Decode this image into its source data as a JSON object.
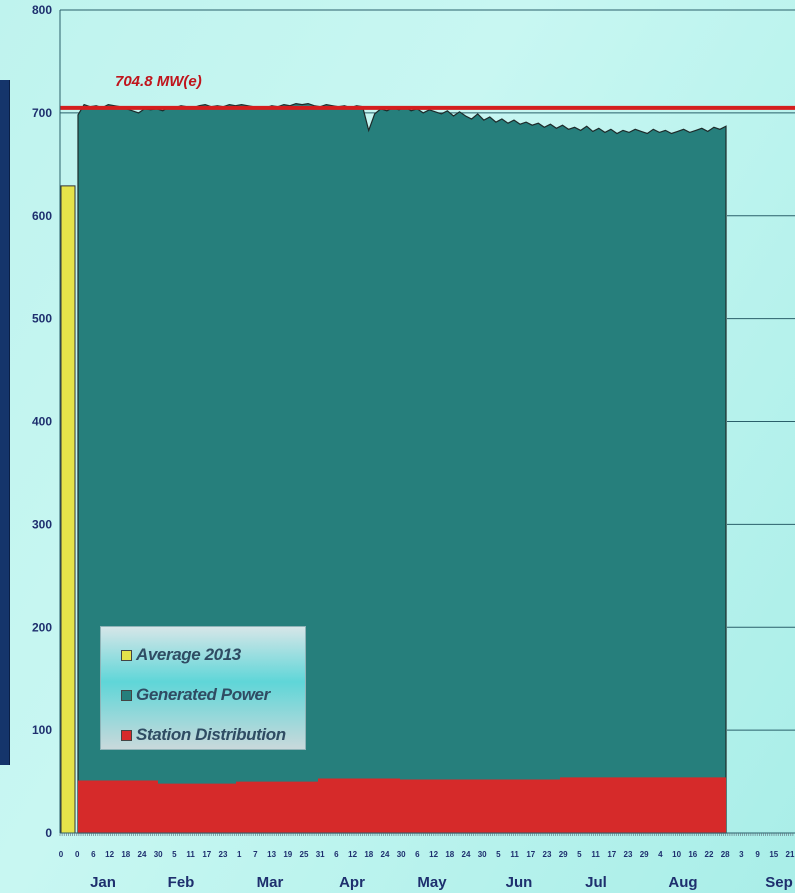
{
  "chart_data": {
    "type": "area",
    "y_axis": {
      "ylim": [
        0,
        800
      ],
      "ticks": [
        "0",
        "100",
        "200",
        "300",
        "400",
        "500",
        "600",
        "700",
        "800"
      ]
    },
    "reference_line": {
      "value": 704.8,
      "label": "704.8 MW(e)",
      "color": "#d41e1e"
    },
    "months": [
      "Jan",
      "Feb",
      "Mar",
      "Apr",
      "May",
      "Jun",
      "Jul",
      "Aug",
      "Sep"
    ],
    "x_tick_labels": [
      "0",
      "0",
      "6",
      "12",
      "18",
      "24",
      "30",
      "5",
      "11",
      "17",
      "23",
      "1",
      "7",
      "13",
      "19",
      "25",
      "31",
      "6",
      "12",
      "18",
      "24",
      "30",
      "6",
      "12",
      "18",
      "24",
      "30",
      "5",
      "11",
      "17",
      "23",
      "29",
      "5",
      "11",
      "17",
      "23",
      "29",
      "4",
      "10",
      "16",
      "22",
      "28",
      "3",
      "9",
      "15",
      "21"
    ],
    "series": [
      {
        "name": "Average 2013",
        "color": "#e5e34a",
        "values": [
          629
        ]
      },
      {
        "name": "Generated Power",
        "color": "#267f7c",
        "values": [
          698,
          708,
          706,
          707,
          705,
          708,
          707,
          706,
          704,
          702,
          700,
          704,
          703,
          704,
          702,
          706,
          705,
          707,
          706,
          705,
          707,
          708,
          706,
          707,
          706,
          708,
          707,
          708,
          707,
          706,
          704,
          705,
          707,
          706,
          708,
          707,
          709,
          708,
          709,
          707,
          706,
          708,
          707,
          706,
          707,
          705,
          707,
          706,
          683,
          699,
          704,
          702,
          705,
          703,
          706,
          702,
          704,
          700,
          703,
          701,
          699,
          702,
          697,
          701,
          697,
          694,
          699,
          693,
          696,
          691,
          694,
          690,
          693,
          689,
          691,
          688,
          690,
          686,
          689,
          685,
          688,
          684,
          686,
          683,
          687,
          682,
          685,
          681,
          684,
          680,
          683,
          681,
          684,
          682,
          680,
          684,
          681,
          683,
          680,
          682,
          684,
          681,
          683,
          685,
          682,
          686,
          684,
          687
        ]
      },
      {
        "name": "Station Distribution",
        "color": "#d62a2a",
        "segments": [
          {
            "month": "Jan",
            "value": 51
          },
          {
            "month": "Feb",
            "value": 48
          },
          {
            "month": "Mar",
            "value": 50
          },
          {
            "month": "Apr",
            "value": 53
          },
          {
            "month": "May",
            "value": 52
          },
          {
            "month": "Jun",
            "value": 52
          },
          {
            "month": "Jul",
            "value": 54
          },
          {
            "month": "Aug",
            "value": 54
          }
        ]
      }
    ],
    "legend": {
      "placement": "bottom-left",
      "items": [
        {
          "label": "Average 2013",
          "color": "#e5e34a"
        },
        {
          "label": "Generated Power",
          "color": "#267f7c"
        },
        {
          "label": "Station  Distribution",
          "color": "#d62a2a"
        }
      ]
    }
  }
}
